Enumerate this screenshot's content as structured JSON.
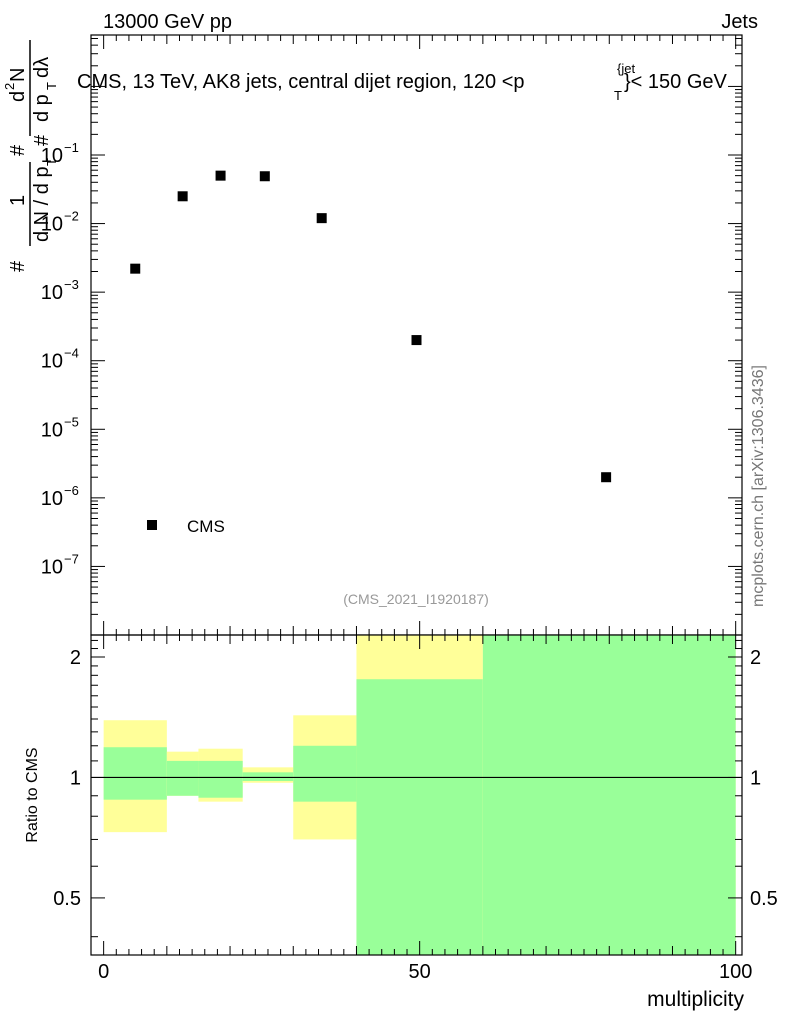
{
  "header": {
    "left": "13000 GeV pp",
    "right": "Jets"
  },
  "title": {
    "main": "CMS, 13 TeV, AK8 jets, central dijet region, 120 <p",
    "sup": "{jet",
    "sub": "T",
    "tail": "}< 150 GeV"
  },
  "ylabel_top": {
    "one": "1",
    "denom": "d N / d p",
    "denom_sub": "T",
    "hash": "#",
    "num": "d",
    "num_sup": "2",
    "num_N": "N",
    "den2": "d p",
    "den2_sub": "T",
    "den2_tail": " dλ",
    "hash2": "#",
    "hash3": "#"
  },
  "ylabel_ratio": "Ratio to CMS",
  "xlabel": "multiplicity",
  "analysis_id": "(CMS_2021_I1920187)",
  "side_label": "mcplots.cern.ch [arXiv:1306.3436]",
  "legend": {
    "label": "CMS"
  },
  "colors": {
    "marker": "#000000",
    "band_inner": "#99ff99",
    "band_outer": "#ffff99",
    "analysis_text": "#999999"
  },
  "chart_data": [
    {
      "type": "scatter",
      "log_y": true,
      "xlim": [
        -2,
        101
      ],
      "ylim_exp": [
        -8,
        0.75
      ],
      "yticks_major": [
        {
          "exp": -7,
          "label": "10",
          "sup": "−7"
        },
        {
          "exp": -6,
          "label": "10",
          "sup": "−6"
        },
        {
          "exp": -5,
          "label": "10",
          "sup": "−5"
        },
        {
          "exp": -4,
          "label": "10",
          "sup": "−4"
        },
        {
          "exp": -3,
          "label": "10",
          "sup": "−3"
        },
        {
          "exp": -2,
          "label": "10",
          "sup": "−2"
        },
        {
          "exp": -1,
          "label": "10",
          "sup": "−1"
        }
      ],
      "series": [
        {
          "name": "CMS",
          "x": [
            5,
            12.5,
            18.5,
            25.5,
            34.5,
            49.5,
            79.5
          ],
          "y": [
            0.0022,
            0.025,
            0.05,
            0.049,
            0.012,
            0.0002,
            2e-06
          ]
        }
      ]
    },
    {
      "type": "area",
      "xlim": [
        -2,
        101
      ],
      "ylim": [
        0.36,
        2.27
      ],
      "yticks": [
        {
          "v": 0.5,
          "label": "0.5"
        },
        {
          "v": 1,
          "label": "1"
        },
        {
          "v": 2,
          "label": "2"
        }
      ],
      "xticks": [
        {
          "v": 0,
          "label": "0"
        },
        {
          "v": 50,
          "label": "50"
        },
        {
          "v": 100,
          "label": "100"
        }
      ],
      "reference": 1,
      "bins": [
        {
          "x0": 0,
          "x1": 10,
          "inner": [
            0.88,
            1.19
          ],
          "outer": [
            0.73,
            1.39
          ]
        },
        {
          "x0": 10,
          "x1": 15,
          "inner": [
            0.9,
            1.1
          ],
          "outer": [
            0.9,
            1.16
          ]
        },
        {
          "x0": 15,
          "x1": 22,
          "inner": [
            0.89,
            1.1
          ],
          "outer": [
            0.87,
            1.18
          ]
        },
        {
          "x0": 22,
          "x1": 30,
          "inner": [
            0.98,
            1.03
          ],
          "outer": [
            0.97,
            1.06
          ]
        },
        {
          "x0": 30,
          "x1": 40,
          "inner": [
            0.87,
            1.2
          ],
          "outer": [
            0.7,
            1.43
          ]
        },
        {
          "x0": 40,
          "x1": 60,
          "inner": [
            0.36,
            1.76
          ],
          "outer": [
            0.36,
            2.27
          ]
        },
        {
          "x0": 60,
          "x1": 100,
          "inner": [
            0.36,
            2.27
          ],
          "outer": [
            0.36,
            2.27
          ]
        }
      ]
    }
  ]
}
